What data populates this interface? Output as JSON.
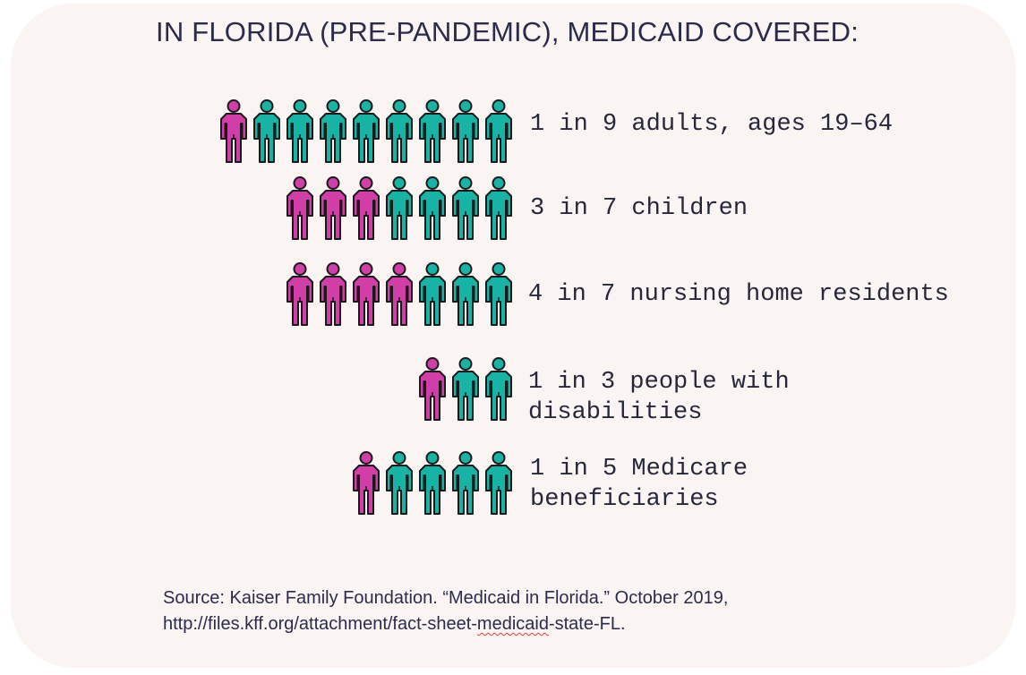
{
  "title": "IN FLORIDA (PRE-PANDEMIC), MEDICAID COVERED:",
  "colors": {
    "covered": "#d13ea8",
    "not_covered": "#17b3a5",
    "outline": "#1a1a1a",
    "card": "#faf4f3",
    "text": "#2b2c4b"
  },
  "chart_data": {
    "type": "pictograph",
    "title": "IN FLORIDA (PRE-PANDEMIC), MEDICAID COVERED:",
    "rows": [
      {
        "covered": 1,
        "total": 9,
        "label_lines": [
          "1 in 9 adults, ages 19–64"
        ]
      },
      {
        "covered": 3,
        "total": 7,
        "label_lines": [
          "3 in 7 children"
        ]
      },
      {
        "covered": 4,
        "total": 7,
        "label_lines": [
          "4 in 7 nursing home residents"
        ]
      },
      {
        "covered": 1,
        "total": 3,
        "label_lines": [
          "1 in 3 people with",
          "disabilities"
        ]
      },
      {
        "covered": 1,
        "total": 5,
        "label_lines": [
          "1 in 5 Medicare",
          "beneficiaries"
        ]
      }
    ]
  },
  "source": {
    "line1": "Source: Kaiser Family Foundation. “Medicaid in Florida.” October 2019,",
    "line2_a": "http://files.kff.org/attachment/fact-sheet-",
    "line2_b": "medicaid",
    "line2_c": "-state-FL."
  }
}
